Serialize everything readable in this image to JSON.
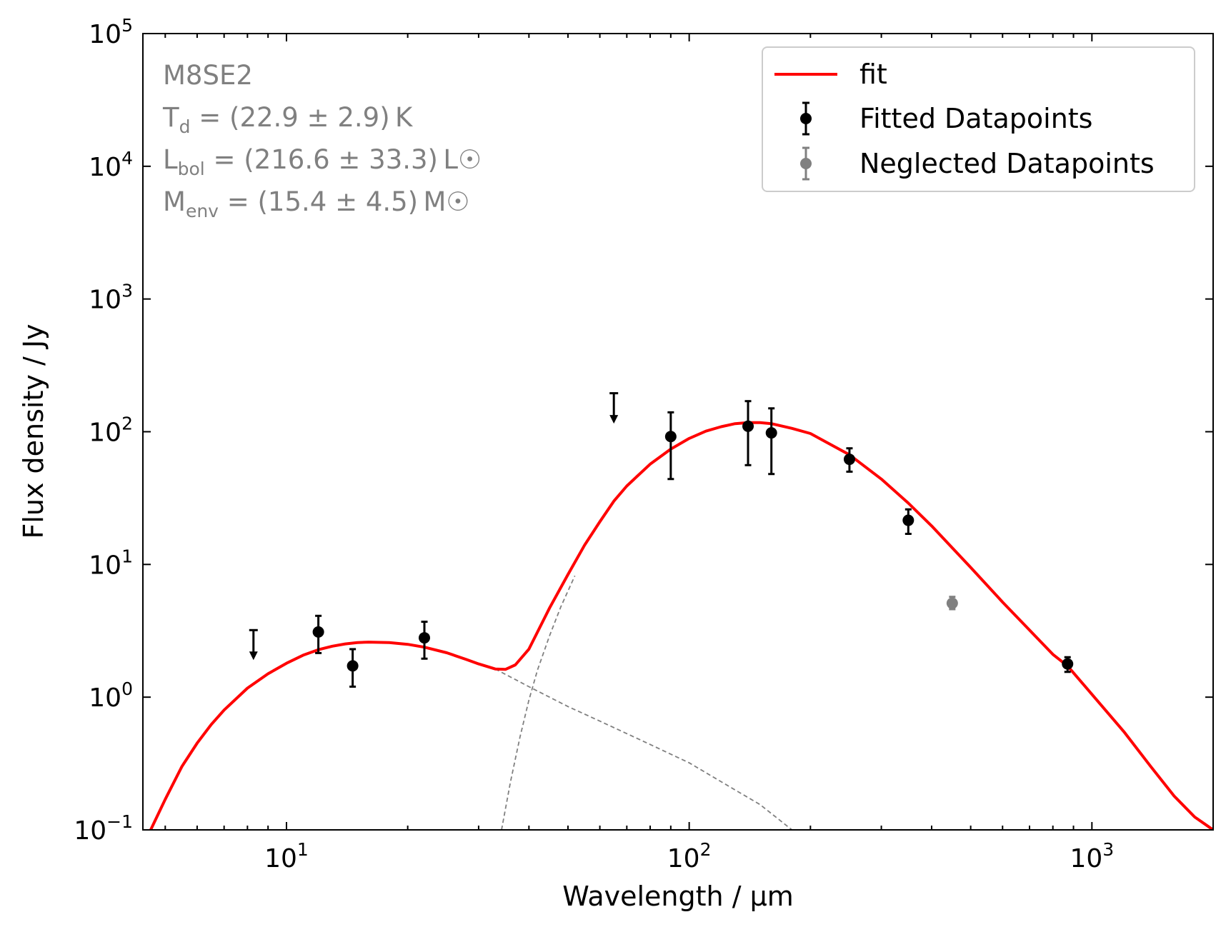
{
  "chart_data": {
    "type": "scatter",
    "title": "",
    "xlabel": "Wavelength / μm",
    "ylabel": "Flux density / Jy",
    "xscale": "log",
    "yscale": "log",
    "xlim": [
      4.4,
      2000
    ],
    "ylim": [
      0.1,
      100000
    ],
    "grid": false,
    "legend_position": "top-right",
    "x_ticks": [
      {
        "value": 10,
        "base": "10",
        "exp": "1"
      },
      {
        "value": 100,
        "base": "10",
        "exp": "2"
      },
      {
        "value": 1000,
        "base": "10",
        "exp": "3"
      }
    ],
    "y_ticks": [
      {
        "value": 0.1,
        "base": "10",
        "exp": "−1"
      },
      {
        "value": 1,
        "base": "10",
        "exp": "0"
      },
      {
        "value": 10,
        "base": "10",
        "exp": "1"
      },
      {
        "value": 100,
        "base": "10",
        "exp": "2"
      },
      {
        "value": 1000,
        "base": "10",
        "exp": "3"
      },
      {
        "value": 10000,
        "base": "10",
        "exp": "4"
      },
      {
        "value": 100000,
        "base": "10",
        "exp": "5"
      }
    ],
    "annotation": {
      "source": "M8SE2",
      "lines": [
        {
          "sym": "T",
          "sub": "d",
          "text": " = (22.9 ± 2.9) K"
        },
        {
          "sym": "L",
          "sub": "bol",
          "text": " = (216.6 ± 33.3) L☉"
        },
        {
          "sym": "M",
          "sub": "env",
          "text": " = (15.4 ± 4.5) M☉"
        }
      ]
    },
    "legend": [
      {
        "label": "fit",
        "kind": "line",
        "color": "#ff0000"
      },
      {
        "label": "Fitted Datapoints",
        "kind": "errorbar",
        "color": "#000000"
      },
      {
        "label": "Neglected Datapoints",
        "kind": "errorbar",
        "color": "#808080"
      }
    ],
    "colors": {
      "fit": "#ff0000",
      "fitted": "#000000",
      "neglected": "#808080",
      "components": "#808080"
    },
    "series": [
      {
        "name": "fit",
        "kind": "line",
        "points": [
          [
            4.6,
            0.1
          ],
          [
            5,
            0.17
          ],
          [
            5.5,
            0.3
          ],
          [
            6,
            0.45
          ],
          [
            6.5,
            0.62
          ],
          [
            7,
            0.8
          ],
          [
            8,
            1.17
          ],
          [
            9,
            1.5
          ],
          [
            10,
            1.8
          ],
          [
            11,
            2.07
          ],
          [
            12,
            2.28
          ],
          [
            13,
            2.42
          ],
          [
            14,
            2.52
          ],
          [
            15,
            2.58
          ],
          [
            16,
            2.6
          ],
          [
            18,
            2.58
          ],
          [
            20,
            2.5
          ],
          [
            22,
            2.38
          ],
          [
            25,
            2.16
          ],
          [
            28,
            1.92
          ],
          [
            30,
            1.78
          ],
          [
            33,
            1.63
          ],
          [
            35,
            1.62
          ],
          [
            37,
            1.75
          ],
          [
            40,
            2.3
          ],
          [
            45,
            4.7
          ],
          [
            50,
            8.4
          ],
          [
            55,
            14
          ],
          [
            60,
            21
          ],
          [
            65,
            30
          ],
          [
            70,
            39
          ],
          [
            80,
            57
          ],
          [
            90,
            74
          ],
          [
            100,
            89
          ],
          [
            110,
            101
          ],
          [
            120,
            109
          ],
          [
            130,
            115
          ],
          [
            140,
            117
          ],
          [
            150,
            117
          ],
          [
            160,
            115
          ],
          [
            180,
            106
          ],
          [
            200,
            97
          ],
          [
            250,
            67
          ],
          [
            300,
            44
          ],
          [
            350,
            29
          ],
          [
            400,
            19.5
          ],
          [
            500,
            9.5
          ],
          [
            600,
            5.2
          ],
          [
            700,
            3.2
          ],
          [
            800,
            2.1
          ],
          [
            870,
            1.72
          ],
          [
            1000,
            1.05
          ],
          [
            1200,
            0.55
          ],
          [
            1400,
            0.3
          ],
          [
            1600,
            0.18
          ],
          [
            1800,
            0.125
          ],
          [
            2000,
            0.1
          ]
        ]
      },
      {
        "name": "warm component",
        "kind": "dashed",
        "points": [
          [
            33,
            1.63
          ],
          [
            40,
            1.2
          ],
          [
            50,
            0.85
          ],
          [
            60,
            0.66
          ],
          [
            80,
            0.44
          ],
          [
            100,
            0.32
          ],
          [
            130,
            0.2
          ],
          [
            150,
            0.155
          ],
          [
            180,
            0.1
          ]
        ]
      },
      {
        "name": "cold component",
        "kind": "dashed",
        "points": [
          [
            34.2,
            0.1
          ],
          [
            36,
            0.23
          ],
          [
            38,
            0.5
          ],
          [
            40,
            0.95
          ],
          [
            42,
            1.6
          ],
          [
            45,
            2.9
          ],
          [
            48,
            4.8
          ],
          [
            52,
            8.2
          ]
        ]
      },
      {
        "name": "Fitted Datapoints",
        "kind": "errorbar",
        "points": [
          {
            "x": 12,
            "y": 3.1,
            "lo": 2.15,
            "hi": 4.1
          },
          {
            "x": 14.6,
            "y": 1.72,
            "lo": 1.2,
            "hi": 2.3
          },
          {
            "x": 22,
            "y": 2.8,
            "lo": 1.95,
            "hi": 3.7
          },
          {
            "x": 90,
            "y": 92,
            "lo": 44,
            "hi": 140
          },
          {
            "x": 140,
            "y": 110,
            "lo": 56,
            "hi": 170
          },
          {
            "x": 160,
            "y": 98,
            "lo": 48,
            "hi": 150
          },
          {
            "x": 250,
            "y": 62,
            "lo": 50,
            "hi": 75
          },
          {
            "x": 350,
            "y": 21.5,
            "lo": 17,
            "hi": 26
          },
          {
            "x": 870,
            "y": 1.78,
            "lo": 1.55,
            "hi": 2.0
          }
        ]
      },
      {
        "name": "Neglected Datapoints",
        "kind": "errorbar",
        "points": [
          {
            "x": 450,
            "y": 5.1,
            "lo": 4.6,
            "hi": 5.7
          }
        ]
      },
      {
        "name": "Upper limits",
        "kind": "upper-limit",
        "points": [
          {
            "x": 8.28,
            "y": 3.2,
            "arrow_to": 1.95
          },
          {
            "x": 65,
            "y": 195,
            "arrow_to": 118
          }
        ]
      }
    ]
  }
}
